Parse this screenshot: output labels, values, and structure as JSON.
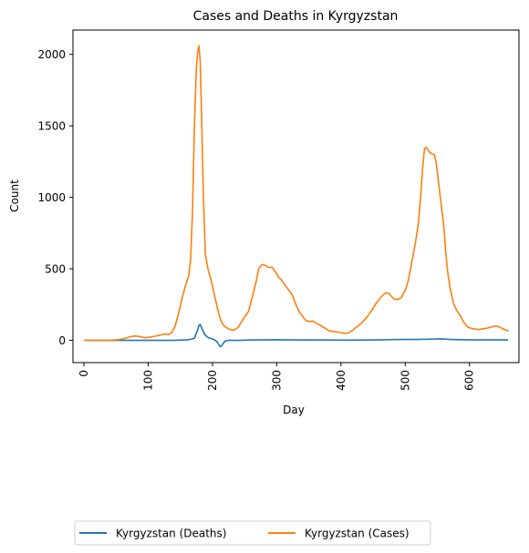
{
  "chart_data": {
    "type": "line",
    "title": "Cases and Deaths in Kyrgyzstan",
    "xlabel": "Day",
    "ylabel": "Count",
    "xlim": [
      -17,
      677
    ],
    "ylim": [
      -156,
      2170
    ],
    "xticks": [
      0,
      100,
      200,
      300,
      400,
      500,
      600
    ],
    "yticks": [
      0,
      500,
      1000,
      1500,
      2000
    ],
    "grid": false,
    "legend_placement": "bottom-center",
    "series": [
      {
        "name": "Kyrgyzstan (Deaths)",
        "color": "#1f77b4",
        "points": [
          [
            0,
            0
          ],
          [
            20,
            0
          ],
          [
            40,
            0
          ],
          [
            60,
            0
          ],
          [
            80,
            0
          ],
          [
            100,
            0
          ],
          [
            120,
            0
          ],
          [
            140,
            0
          ],
          [
            150,
            1
          ],
          [
            160,
            3
          ],
          [
            168,
            8
          ],
          [
            172,
            15
          ],
          [
            176,
            60
          ],
          [
            179,
            105
          ],
          [
            181,
            110
          ],
          [
            184,
            80
          ],
          [
            188,
            40
          ],
          [
            193,
            20
          ],
          [
            198,
            12
          ],
          [
            203,
            5
          ],
          [
            207,
            -10
          ],
          [
            210,
            -30
          ],
          [
            212,
            -45
          ],
          [
            214,
            -40
          ],
          [
            217,
            -20
          ],
          [
            220,
            -5
          ],
          [
            225,
            0
          ],
          [
            240,
            0
          ],
          [
            260,
            2
          ],
          [
            280,
            3
          ],
          [
            300,
            4
          ],
          [
            320,
            3
          ],
          [
            340,
            2
          ],
          [
            360,
            2
          ],
          [
            380,
            2
          ],
          [
            400,
            1
          ],
          [
            420,
            1
          ],
          [
            440,
            2
          ],
          [
            460,
            3
          ],
          [
            480,
            5
          ],
          [
            500,
            6
          ],
          [
            520,
            6
          ],
          [
            540,
            8
          ],
          [
            555,
            10
          ],
          [
            570,
            6
          ],
          [
            590,
            4
          ],
          [
            610,
            3
          ],
          [
            630,
            3
          ],
          [
            660,
            3
          ]
        ]
      },
      {
        "name": "Kyrgyzstan (Cases)",
        "color": "#ff7f0e",
        "points": [
          [
            0,
            0
          ],
          [
            20,
            0
          ],
          [
            40,
            0
          ],
          [
            55,
            5
          ],
          [
            65,
            15
          ],
          [
            72,
            25
          ],
          [
            80,
            30
          ],
          [
            88,
            25
          ],
          [
            95,
            18
          ],
          [
            103,
            22
          ],
          [
            110,
            28
          ],
          [
            118,
            35
          ],
          [
            126,
            45
          ],
          [
            132,
            40
          ],
          [
            137,
            55
          ],
          [
            142,
            100
          ],
          [
            148,
            200
          ],
          [
            153,
            300
          ],
          [
            158,
            380
          ],
          [
            163,
            450
          ],
          [
            166,
            560
          ],
          [
            169,
            900
          ],
          [
            172,
            1500
          ],
          [
            175,
            1900
          ],
          [
            177,
            2020
          ],
          [
            179,
            2060
          ],
          [
            181,
            1950
          ],
          [
            183,
            1600
          ],
          [
            186,
            1000
          ],
          [
            189,
            600
          ],
          [
            193,
            500
          ],
          [
            198,
            420
          ],
          [
            203,
            320
          ],
          [
            208,
            220
          ],
          [
            213,
            140
          ],
          [
            218,
            100
          ],
          [
            225,
            80
          ],
          [
            233,
            70
          ],
          [
            240,
            90
          ],
          [
            248,
            150
          ],
          [
            256,
            200
          ],
          [
            262,
            300
          ],
          [
            268,
            410
          ],
          [
            272,
            500
          ],
          [
            277,
            530
          ],
          [
            282,
            525
          ],
          [
            287,
            510
          ],
          [
            293,
            510
          ],
          [
            298,
            480
          ],
          [
            303,
            440
          ],
          [
            308,
            420
          ],
          [
            313,
            385
          ],
          [
            319,
            350
          ],
          [
            324,
            320
          ],
          [
            330,
            250
          ],
          [
            335,
            200
          ],
          [
            340,
            170
          ],
          [
            345,
            140
          ],
          [
            350,
            130
          ],
          [
            356,
            135
          ],
          [
            362,
            120
          ],
          [
            368,
            105
          ],
          [
            375,
            85
          ],
          [
            382,
            65
          ],
          [
            390,
            60
          ],
          [
            398,
            55
          ],
          [
            405,
            48
          ],
          [
            412,
            52
          ],
          [
            418,
            70
          ],
          [
            425,
            95
          ],
          [
            432,
            120
          ],
          [
            440,
            160
          ],
          [
            448,
            210
          ],
          [
            455,
            260
          ],
          [
            462,
            300
          ],
          [
            466,
            320
          ],
          [
            470,
            330
          ],
          [
            474,
            330
          ],
          [
            478,
            310
          ],
          [
            482,
            290
          ],
          [
            488,
            285
          ],
          [
            494,
            300
          ],
          [
            500,
            350
          ],
          [
            505,
            420
          ],
          [
            510,
            540
          ],
          [
            515,
            660
          ],
          [
            520,
            800
          ],
          [
            524,
            1000
          ],
          [
            527,
            1200
          ],
          [
            530,
            1340
          ],
          [
            533,
            1350
          ],
          [
            537,
            1320
          ],
          [
            541,
            1305
          ],
          [
            545,
            1300
          ],
          [
            548,
            1250
          ],
          [
            552,
            1100
          ],
          [
            556,
            950
          ],
          [
            560,
            800
          ],
          [
            563,
            620
          ],
          [
            566,
            480
          ],
          [
            570,
            360
          ],
          [
            575,
            260
          ],
          [
            580,
            210
          ],
          [
            586,
            170
          ],
          [
            592,
            120
          ],
          [
            598,
            90
          ],
          [
            606,
            80
          ],
          [
            614,
            75
          ],
          [
            620,
            80
          ],
          [
            628,
            85
          ],
          [
            635,
            95
          ],
          [
            640,
            100
          ],
          [
            646,
            95
          ],
          [
            652,
            80
          ],
          [
            658,
            70
          ],
          [
            661,
            65
          ]
        ]
      }
    ]
  }
}
